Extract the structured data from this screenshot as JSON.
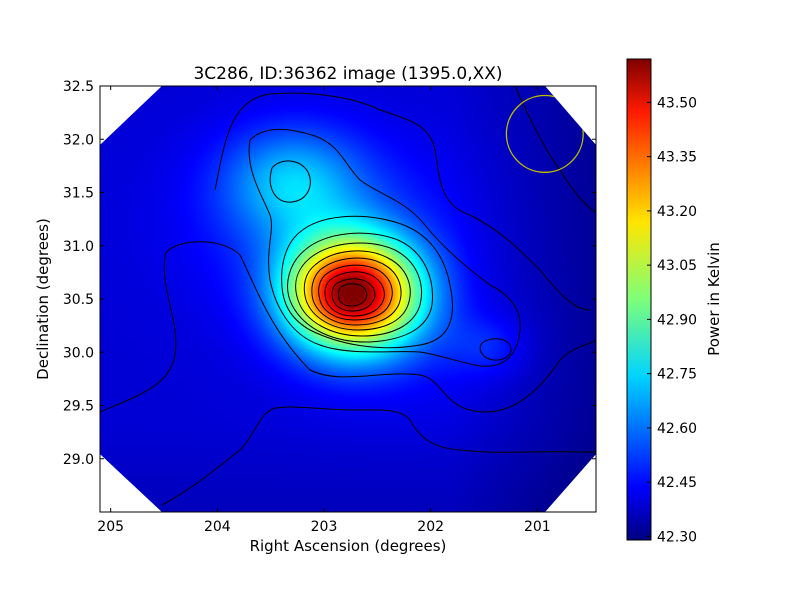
{
  "chart_data": {
    "type": "heatmap",
    "title": "3C286, ID:36362 image (1395.0,XX)",
    "xlabel": "Right Ascension (degrees)",
    "ylabel": "Declination (degrees)",
    "xlim": [
      205.1,
      200.45
    ],
    "ylim": [
      28.5,
      32.5
    ],
    "x_ticks": [
      205,
      204,
      203,
      202,
      201
    ],
    "x_tick_labels": [
      "205",
      "204",
      "203",
      "202",
      "201"
    ],
    "y_ticks": [
      29.0,
      29.5,
      30.0,
      30.5,
      31.0,
      31.5,
      32.0,
      32.5
    ],
    "y_tick_labels": [
      "29.0",
      "29.5",
      "30.0",
      "30.5",
      "31.0",
      "31.5",
      "32.0",
      "32.5"
    ],
    "colorbar": {
      "label": "Power in Kelvin",
      "range": [
        42.29,
        43.62
      ],
      "ticks": [
        42.3,
        42.45,
        42.6,
        42.75,
        42.9,
        43.05,
        43.2,
        43.35,
        43.5
      ],
      "tick_labels": [
        "42.30",
        "42.45",
        "42.60",
        "42.75",
        "42.90",
        "43.05",
        "43.20",
        "43.35",
        "43.50"
      ],
      "colormap": "jet"
    },
    "peak": {
      "ra": 202.73,
      "dec": 30.55,
      "value": 43.6
    },
    "sources": [
      {
        "ra": 202.73,
        "dec": 30.55,
        "value_above_background": 1.15,
        "sigma_ra": 0.42,
        "sigma_dec": 0.36
      },
      {
        "ra": 203.3,
        "dec": 31.6,
        "value_above_background": 0.25,
        "sigma_ra": 0.45,
        "sigma_dec": 0.35
      },
      {
        "ra": 203.0,
        "dec": 31.2,
        "value_above_background": 0.12,
        "sigma_ra": 0.9,
        "sigma_dec": 0.6
      },
      {
        "ra": 201.45,
        "dec": 30.05,
        "value_above_background": 0.09,
        "sigma_ra": 0.25,
        "sigma_dec": 0.2
      },
      {
        "ra": 202.3,
        "dec": 30.1,
        "value_above_background": 0.06,
        "sigma_ra": 0.8,
        "sigma_dec": 0.5
      }
    ],
    "background": 42.4,
    "beam_circle": {
      "ra": 200.93,
      "dec": 32.05,
      "radius_deg": 0.36,
      "color": "#bfbf00"
    },
    "contour_color": "#000000",
    "grid": false
  }
}
